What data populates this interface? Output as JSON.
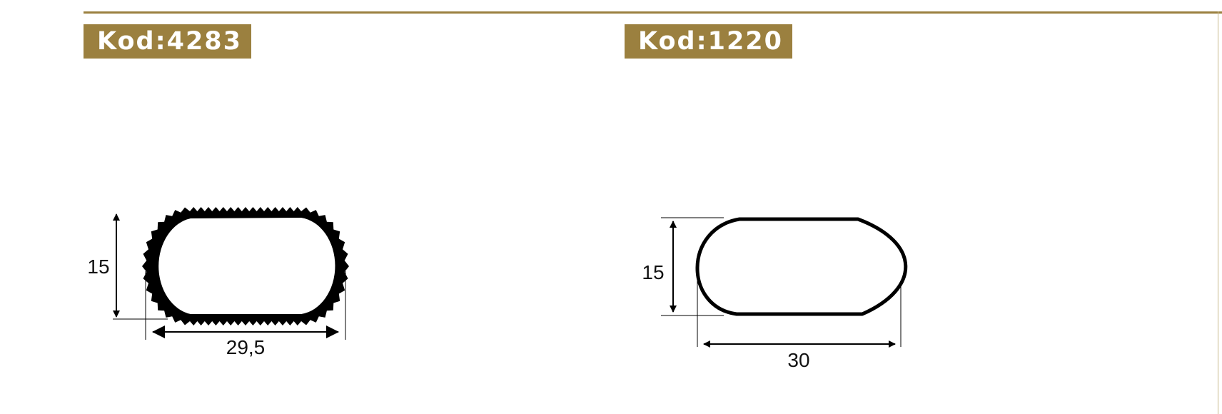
{
  "products": [
    {
      "code_label": "Kod:4283",
      "height_dim": "15",
      "width_dim": "29,5"
    },
    {
      "code_label": "Kod:1220",
      "height_dim": "15",
      "width_dim": "30"
    }
  ],
  "colors": {
    "accent": "#9b803f",
    "line": "#000000",
    "text": "#111111"
  }
}
